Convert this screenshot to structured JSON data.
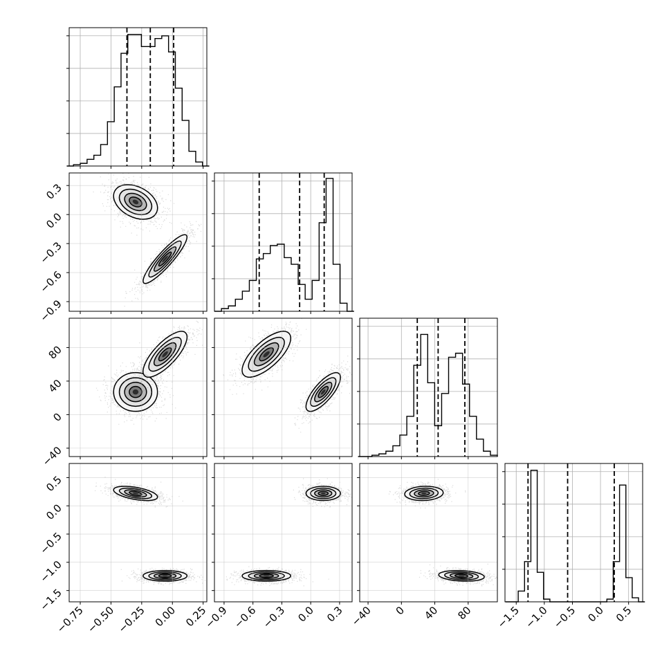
{
  "chart_data": {
    "type": "corner",
    "title": "",
    "params": [
      {
        "range": [
          -0.84,
          0.28
        ],
        "ticks": [
          -0.75,
          -0.5,
          -0.25,
          0.0,
          0.25
        ],
        "tick_labels": [
          "−0.75",
          "−0.50",
          "−0.25",
          "0.00",
          "0.25"
        ],
        "quantiles": [
          -0.37,
          -0.18,
          0.01
        ]
      },
      {
        "range": [
          -1.0,
          0.43
        ],
        "ticks": [
          -0.9,
          -0.6,
          -0.3,
          0.0,
          0.3
        ],
        "tick_labels": [
          "−0.9",
          "−0.6",
          "−0.3",
          "0.0",
          "0.3"
        ],
        "quantiles": [
          -0.535,
          -0.115,
          0.14
        ]
      },
      {
        "range": [
          -50,
          115
        ],
        "ticks": [
          -40,
          0,
          40,
          80
        ],
        "tick_labels": [
          "−40",
          "0",
          "40",
          "80"
        ],
        "quantiles": [
          19,
          44,
          76
        ]
      },
      {
        "range": [
          -1.7,
          0.75
        ],
        "ticks": [
          -1.5,
          -1.0,
          -0.5,
          0.0,
          0.5
        ],
        "tick_labels": [
          "−1.5",
          "−1.0",
          "−0.5",
          "0.0",
          "0.5"
        ],
        "quantiles": [
          -1.29,
          -0.585,
          0.245
        ]
      }
    ],
    "histograms": [
      [
        0.0,
        0.01,
        0.02,
        0.05,
        0.08,
        0.16,
        0.33,
        0.59,
        0.84,
        0.98,
        0.98,
        0.89,
        0.89,
        0.95,
        0.97,
        0.85,
        0.58,
        0.34,
        0.11,
        0.03,
        0.0
      ],
      [
        0.0,
        0.02,
        0.04,
        0.09,
        0.15,
        0.23,
        0.39,
        0.43,
        0.49,
        0.5,
        0.4,
        0.35,
        0.2,
        0.09,
        0.23,
        0.66,
        0.99,
        0.35,
        0.06,
        0.0
      ],
      [
        0.0,
        0.0,
        0.01,
        0.02,
        0.04,
        0.08,
        0.16,
        0.3,
        0.68,
        0.91,
        0.55,
        0.23,
        0.47,
        0.74,
        0.77,
        0.54,
        0.3,
        0.13,
        0.04,
        0.01
      ],
      [
        0.0,
        0.0,
        0.08,
        0.3,
        0.98,
        0.22,
        0.02,
        0.0,
        0.0,
        0.0,
        0.0,
        0.0,
        0.0,
        0.0,
        0.0,
        0.0,
        0.02,
        0.3,
        0.87,
        0.18,
        0.03,
        0.0
      ]
    ],
    "hist_bins": [
      [
        -0.86,
        0.3
      ],
      [
        -1.0,
        0.45
      ],
      [
        -52,
        115
      ],
      [
        -1.69,
        0.79
      ]
    ],
    "modes": [
      [
        -0.3,
        0.13,
        27,
        0.22
      ],
      [
        -0.06,
        -0.46,
        72,
        -1.24
      ]
    ],
    "mode_spreads": [
      [
        0.085,
        0.085,
        11,
        0.06
      ],
      [
        0.085,
        0.12,
        13,
        0.045
      ]
    ],
    "correlations": [
      {
        "pair": [
          0,
          1
        ],
        "rho": [
          -0.35,
          0.9
        ]
      },
      {
        "pair": [
          0,
          2
        ],
        "rho": [
          0.0,
          0.75
        ]
      },
      {
        "pair": [
          1,
          2
        ],
        "rho": [
          0.75,
          0.7
        ]
      },
      {
        "pair": [
          0,
          3
        ],
        "rho": [
          -0.5,
          0.0
        ]
      },
      {
        "pair": [
          1,
          3
        ],
        "rho": [
          0.0,
          0.0
        ]
      },
      {
        "pair": [
          2,
          3
        ],
        "rho": [
          0.1,
          -0.2
        ]
      }
    ],
    "grid": true,
    "colors": {
      "line": "#000000",
      "grid": "#b0b0b0",
      "points": "#555555"
    }
  }
}
